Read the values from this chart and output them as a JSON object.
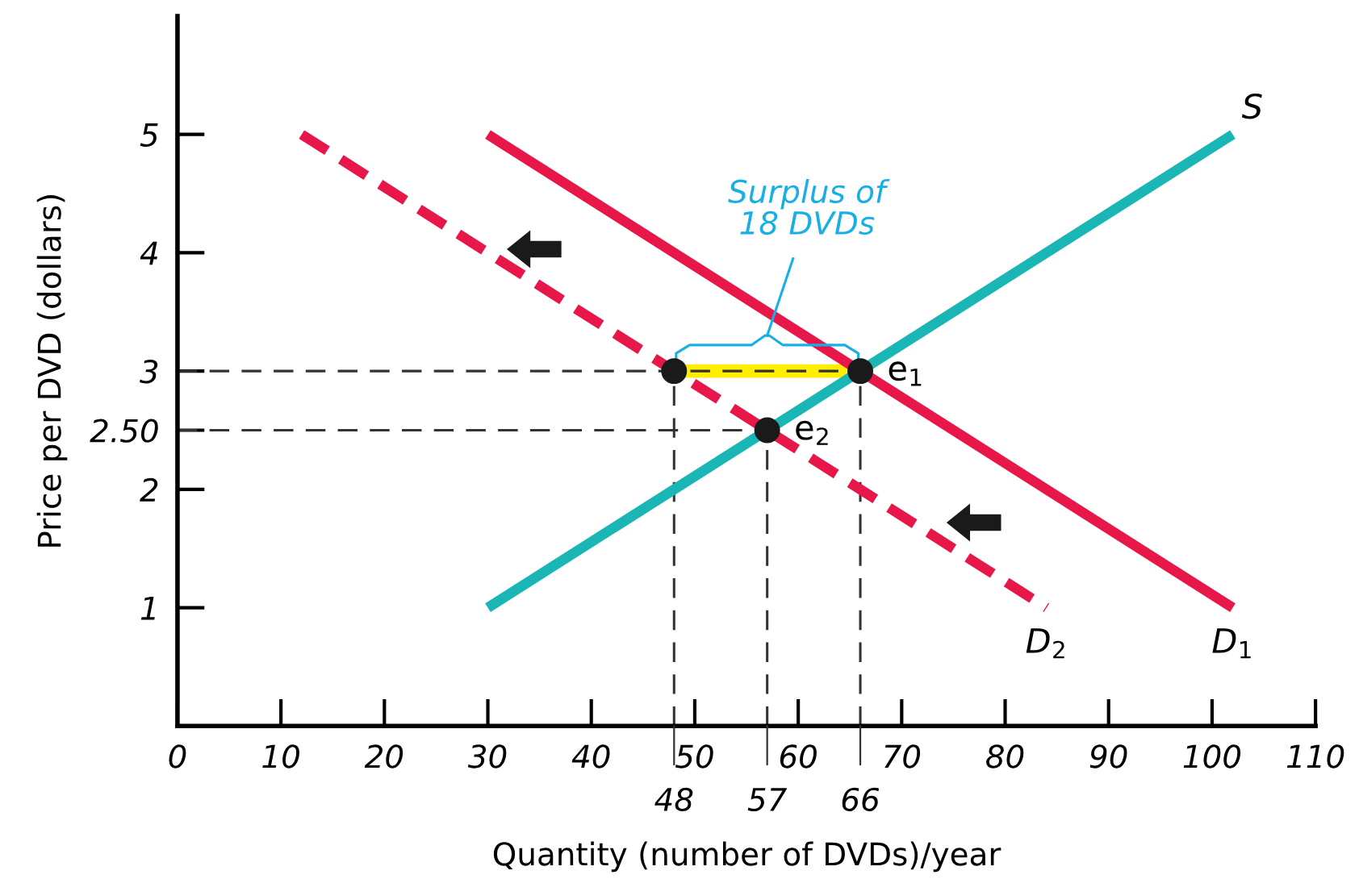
{
  "chart_data": {
    "type": "line",
    "xlabel": "Quantity (number of DVDs)/year",
    "ylabel": "Price per DVD (dollars)",
    "xlim": [
      0,
      110
    ],
    "ylim": [
      0,
      6
    ],
    "xticks": [
      0,
      10,
      20,
      30,
      40,
      50,
      60,
      70,
      80,
      90,
      100,
      110
    ],
    "yticks": [
      1,
      2,
      {
        "value": 2.5,
        "label": "2.50"
      },
      3,
      4,
      5
    ],
    "series": [
      {
        "color": "#ffee00",
        "x": [
          48,
          66
        ],
        "values": [
          3,
          3
        ]
      },
      {
        "line_style": "dashed",
        "color": "#333333",
        "x": [
          0,
          66
        ],
        "values": [
          3,
          3
        ]
      },
      {
        "line_style": "dashed",
        "color": "#333333",
        "x": [
          0,
          57
        ],
        "values": [
          2.5,
          2.5
        ]
      },
      {
        "line_style": "dashed",
        "color": "#333333",
        "x": [
          48,
          48
        ],
        "values": [
          0,
          3
        ]
      },
      {
        "line_style": "dashed",
        "color": "#333333",
        "x": [
          57,
          57
        ],
        "values": [
          0,
          2.5
        ]
      },
      {
        "line_style": "dashed",
        "color": "#333333",
        "x": [
          66,
          66
        ],
        "values": [
          0,
          3
        ]
      },
      {
        "line_style": "dashed",
        "name": "D$_{2}$",
        "color": "#e8174a",
        "x": [
          12,
          84
        ],
        "values": [
          5,
          1
        ]
      },
      {
        "line_style": "solid",
        "name": "D$_{1}$",
        "color": "#e8174a",
        "x": [
          30,
          102
        ],
        "values": [
          5,
          1
        ]
      },
      {
        "line_style": "solid",
        "name": "S",
        "color": "#1ab5b5",
        "x": [
          30,
          102
        ],
        "values": [
          1,
          5
        ]
      },
      {
        "type": "scatter",
        "marker": "circle",
        "color": "#1a1a1a",
        "x": [
          48,
          57,
          66
        ],
        "values": [
          3,
          2.5,
          3
        ]
      }
    ],
    "annotations": [
      {
        "text": "e$_{1}$",
        "x": 66,
        "y": 3
      },
      {
        "text": "e$_{2}$",
        "x": 57,
        "y": 2.5
      },
      "Surplus of\n18 DVDs",
      {
        "text": "48",
        "x": 48,
        "y": 0
      },
      {
        "text": "57",
        "x": 57,
        "y": 0
      },
      {
        "text": "66",
        "x": 66,
        "y": 0
      }
    ]
  }
}
